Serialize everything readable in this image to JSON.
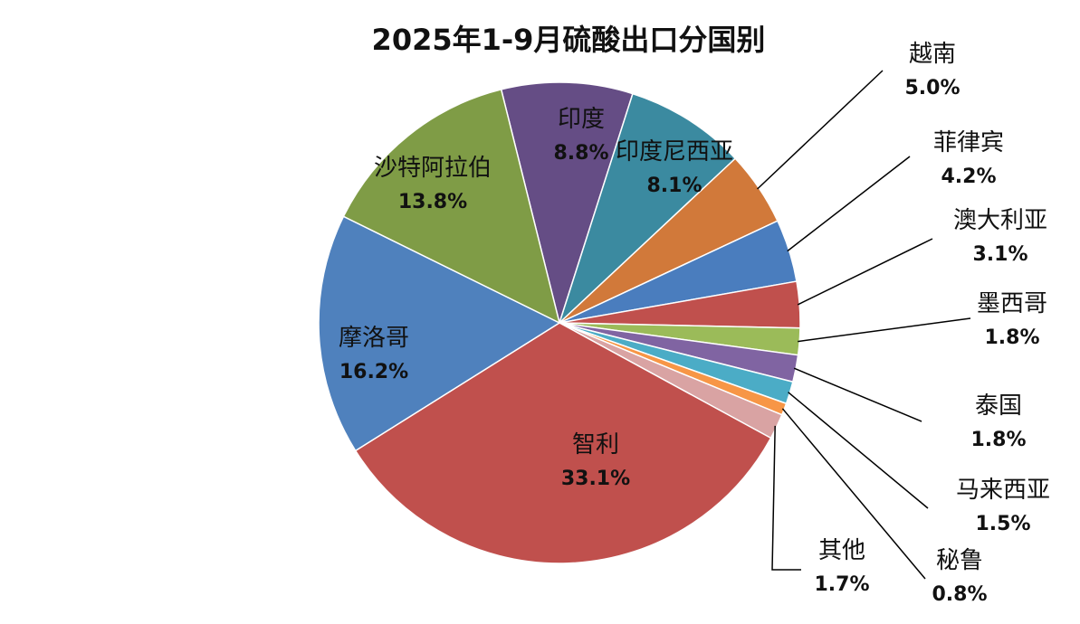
{
  "chart_data": {
    "type": "pie",
    "title": "2025年1-9月硫酸出口分国别",
    "slices": [
      {
        "name": "印度",
        "value": 8.8,
        "label": "8.8%",
        "color": "#654d85"
      },
      {
        "name": "印度尼西亚",
        "value": 8.1,
        "label": "8.1%",
        "color": "#3b8aa0"
      },
      {
        "name": "越南",
        "value": 5.0,
        "label": "5.0%",
        "color": "#d1793a"
      },
      {
        "name": "菲律宾",
        "value": 4.2,
        "label": "4.2%",
        "color": "#4a7dbe"
      },
      {
        "name": "澳大利亚",
        "value": 3.1,
        "label": "3.1%",
        "color": "#c0504d"
      },
      {
        "name": "墨西哥",
        "value": 1.8,
        "label": "1.8%",
        "color": "#9bbb59"
      },
      {
        "name": "泰国",
        "value": 1.8,
        "label": "1.8%",
        "color": "#8064a2"
      },
      {
        "name": "马来西亚",
        "value": 1.5,
        "label": "1.5%",
        "color": "#4bacc6"
      },
      {
        "name": "秘鲁",
        "value": 0.8,
        "label": "0.8%",
        "color": "#f79646"
      },
      {
        "name": "其他",
        "value": 1.7,
        "label": "1.7%",
        "color": "#d9a3a3"
      },
      {
        "name": "智利",
        "value": 33.1,
        "label": "33.1%",
        "color": "#c0504d"
      },
      {
        "name": "摩洛哥",
        "value": 16.2,
        "label": "16.2%",
        "color": "#4f81bd"
      },
      {
        "name": "沙特阿拉伯",
        "value": 13.8,
        "label": "13.8%",
        "color": "#7f9c46"
      }
    ]
  }
}
